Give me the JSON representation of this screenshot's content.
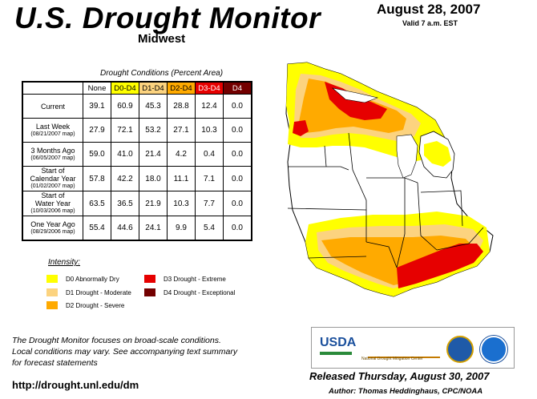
{
  "header": {
    "title": "U.S. Drought Monitor",
    "region": "Midwest",
    "date": "August 28, 2007",
    "valid": "Valid 7 a.m. EST"
  },
  "table": {
    "caption": "Drought Conditions (Percent Area)",
    "columns": [
      "None",
      "D0-D4",
      "D1-D4",
      "D2-D4",
      "D3-D4",
      "D4"
    ],
    "rows": [
      {
        "label": "Current",
        "sub": "",
        "values": [
          "39.1",
          "60.9",
          "45.3",
          "28.8",
          "12.4",
          "0.0"
        ]
      },
      {
        "label": "Last Week",
        "sub": "(08/21/2007 map)",
        "values": [
          "27.9",
          "72.1",
          "53.2",
          "27.1",
          "10.3",
          "0.0"
        ]
      },
      {
        "label": "3 Months Ago",
        "sub": "(06/05/2007 map)",
        "values": [
          "59.0",
          "41.0",
          "21.4",
          "4.2",
          "0.4",
          "0.0"
        ]
      },
      {
        "label": "Start of\nCalendar Year",
        "sub": "(01/02/2007 map)",
        "values": [
          "57.8",
          "42.2",
          "18.0",
          "11.1",
          "7.1",
          "0.0"
        ]
      },
      {
        "label": "Start of\nWater Year",
        "sub": "(10/03/2006 map)",
        "values": [
          "63.5",
          "36.5",
          "21.9",
          "10.3",
          "7.7",
          "0.0"
        ]
      },
      {
        "label": "One Year Ago",
        "sub": "(08/29/2006 map)",
        "values": [
          "55.4",
          "44.6",
          "24.1",
          "9.9",
          "5.4",
          "0.0"
        ]
      }
    ]
  },
  "legend": {
    "title": "Intensity:",
    "items": [
      {
        "label": "D0 Abnormally Dry",
        "color": "#ffff00"
      },
      {
        "label": "D1 Drought - Moderate",
        "color": "#fcd37f"
      },
      {
        "label": "D2 Drought - Severe",
        "color": "#ffaa00"
      },
      {
        "label": "D3 Drought - Extreme",
        "color": "#e60000"
      },
      {
        "label": "D4 Drought - Exceptional",
        "color": "#730000"
      }
    ]
  },
  "footer": {
    "note_line1": "The Drought Monitor focuses on broad-scale conditions.",
    "note_line2": "Local conditions may vary. See accompanying text summary",
    "note_line3": "for forecast statements",
    "url": "http://drought.unl.edu/dm",
    "released": "Released Thursday, August 30, 2007",
    "author": "Author: Thomas Heddinghaus, CPC/NOAA"
  },
  "logos": {
    "usda": "USDA",
    "ndmc": "National Drought Mitigation Center"
  }
}
